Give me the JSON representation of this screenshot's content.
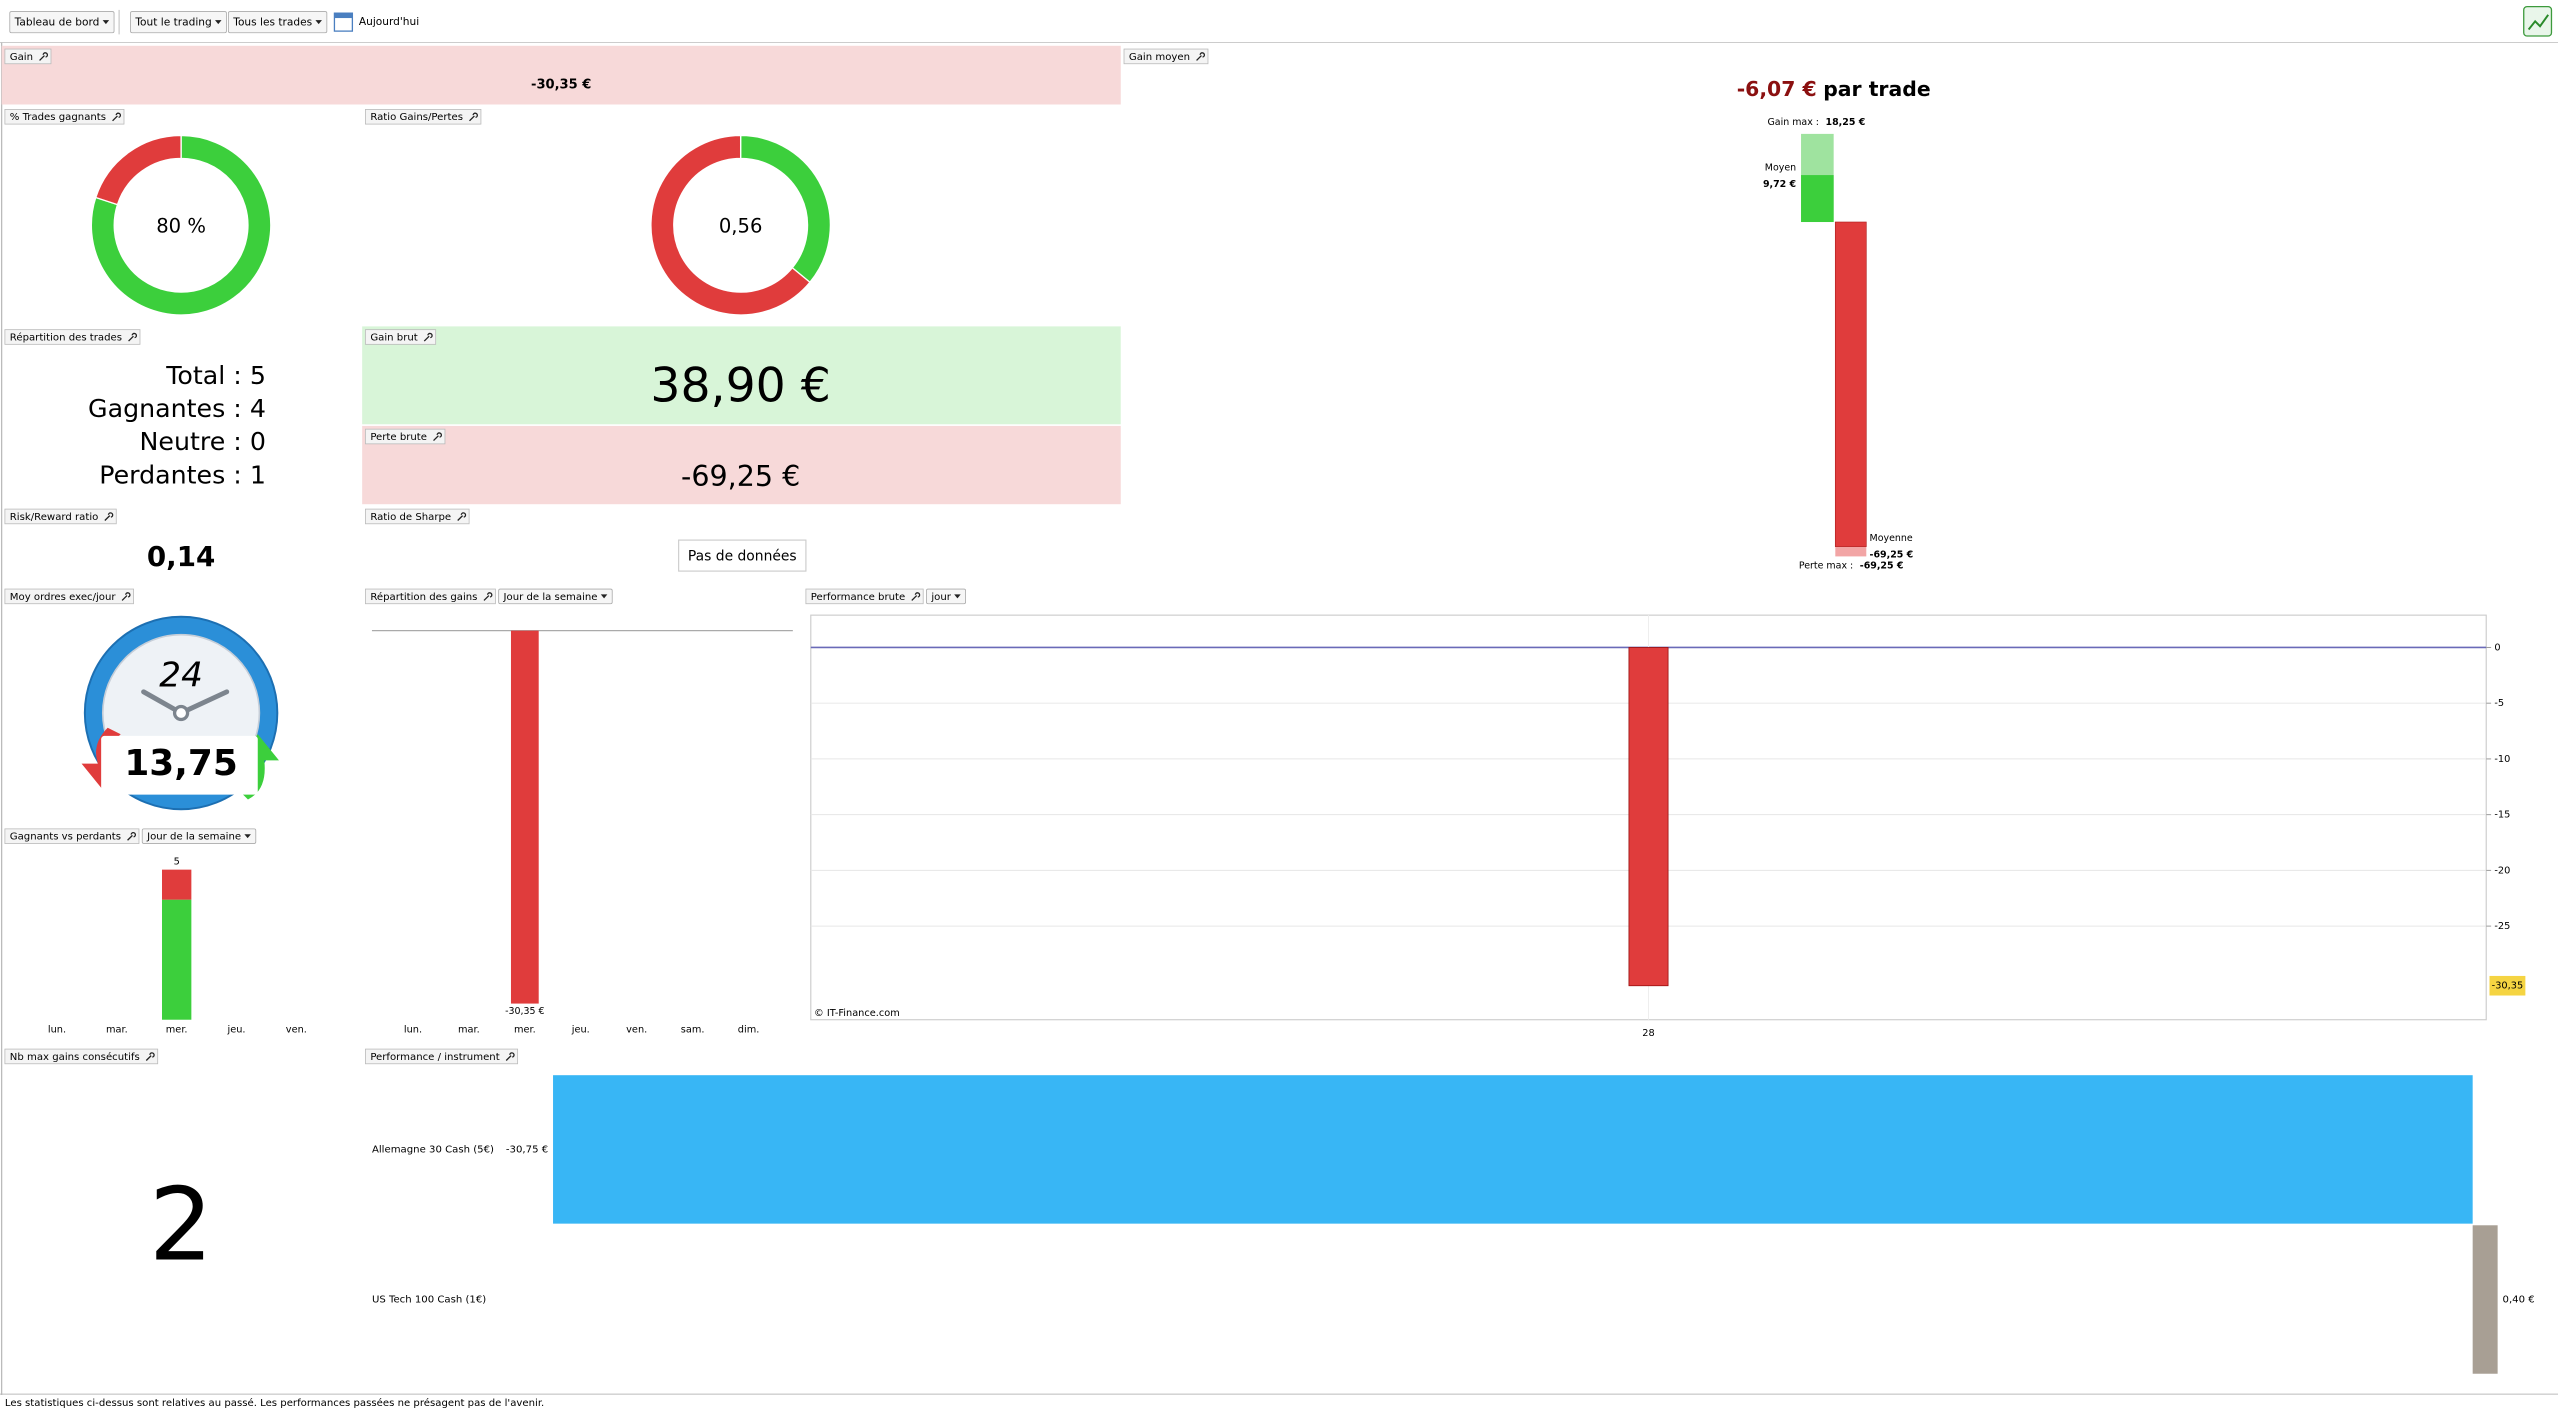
{
  "toolbar": {
    "dashboard": "Tableau de bord",
    "scope": "Tout le trading",
    "trades": "Tous les trades",
    "period": "Aujourd'hui"
  },
  "gain": {
    "title": "Gain",
    "value": "-30,35 €"
  },
  "gain_moyen": {
    "title": "Gain moyen",
    "value": "-6,07 €",
    "suffix": "par trade",
    "ylim": [
      -69.25,
      18.25
    ],
    "gain_max_label": "Gain max :",
    "gain_max": {
      "value": 18.25,
      "label": "18,25 €"
    },
    "moyen_label": "Moyen",
    "moyen": {
      "value": 9.72,
      "label": "9,72 €"
    },
    "moyenne_label": "Moyenne",
    "moyenne": {
      "value": -69.25,
      "label": "-69,25 €"
    },
    "perte_max_label": "Perte max :",
    "perte_max": {
      "value": -69.25,
      "label": "-69,25 €"
    }
  },
  "trades_gagnants": {
    "title": "% Trades gagnants",
    "value": 80,
    "label": "80 %"
  },
  "ratio": {
    "title": "Ratio Gains/Pertes",
    "value": {
      "value": 0.56,
      "label": "0,56"
    }
  },
  "repartition_trades": {
    "title": "Répartition des trades",
    "rows": [
      "Total : 5",
      "Gagnantes : 4",
      "Neutre : 0",
      "Perdantes : 1"
    ]
  },
  "gain_brut": {
    "title": "Gain brut",
    "value": {
      "value": 38.9,
      "label": "38,90 €"
    }
  },
  "perte_brute": {
    "title": "Perte brute",
    "value": {
      "value": -69.25,
      "label": "-69,25 €"
    }
  },
  "risk_reward": {
    "title": "Risk/Reward ratio",
    "value": "0,14"
  },
  "sharpe": {
    "title": "Ratio de Sharpe",
    "value": "Pas de données"
  },
  "ordres": {
    "title": "Moy ordres exec/jour",
    "icon_label": "24",
    "value": "13,75"
  },
  "repartition_gains": {
    "title": "Répartition des gains",
    "mode": "Jour de la semaine",
    "categories": [
      "lun.",
      "mar.",
      "mer.",
      "jeu.",
      "ven.",
      "sam.",
      "dim."
    ],
    "values": [
      null,
      null,
      -30.35,
      null,
      null,
      null,
      null
    ],
    "value_labels": [
      null,
      null,
      "-30,35 €",
      null,
      null,
      null,
      null
    ],
    "ylim": [
      -31,
      0
    ],
    "color": "#e03c3c"
  },
  "perf_brute": {
    "title": "Performance brute",
    "mode": "jour",
    "categories": [
      "28"
    ],
    "values": [
      -30.35
    ],
    "ylim": [
      -33.4,
      2.9
    ],
    "yticks": [
      0,
      -5,
      -10,
      -15,
      -20,
      -25
    ],
    "last_label": {
      "value": -30.35,
      "label": "-30,35"
    },
    "credit": "© IT-Finance.com",
    "color": "#e03c3c"
  },
  "gagnants_perdants": {
    "title": "Gagnants vs perdants",
    "mode": "Jour de la semaine",
    "categories": [
      "lun.",
      "mar.",
      "mer.",
      "jeu.",
      "ven."
    ],
    "gagnants": [
      null,
      null,
      4,
      null,
      null
    ],
    "perdants": [
      null,
      null,
      1,
      null,
      null
    ],
    "totals": [
      null,
      null,
      5,
      null,
      null
    ],
    "ylim": [
      0,
      5
    ],
    "colors": [
      "#3ccf3c",
      "#e03c3c"
    ]
  },
  "max_gains": {
    "title": "Nb max gains consécutifs",
    "value": 2
  },
  "perf_instrument": {
    "title": "Performance / instrument",
    "categories": [
      "Allemagne 30 Cash (5€)",
      "US Tech 100 Cash (1€)"
    ],
    "values": [
      -30.75,
      0.4
    ],
    "value_labels": [
      "-30,75 €",
      "0,40 €"
    ],
    "colors": [
      "#38b6f5",
      "#a89f94"
    ],
    "xlim": [
      -30.75,
      0.4
    ]
  },
  "footer": "Les statistiques ci-dessus sont relatives au passé. Les performances passées ne présagent pas de l'avenir."
}
